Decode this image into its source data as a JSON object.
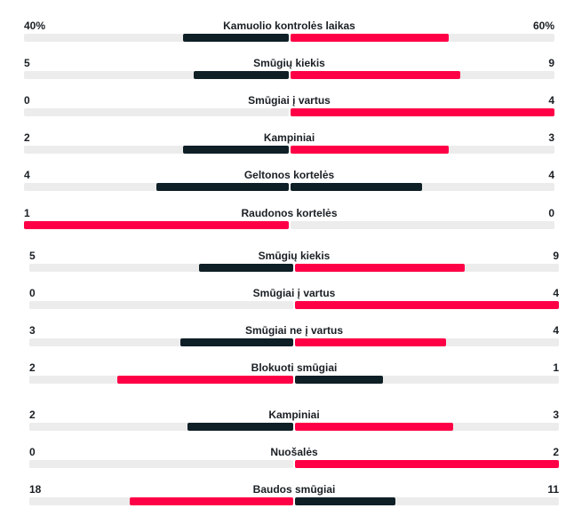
{
  "colors": {
    "leader": "#ff0046",
    "trailer": "#0f1f26",
    "track": "#ececec"
  },
  "panels": [
    {
      "rows": [
        {
          "label": "Kamuolio kontrolės laikas",
          "home": "40%",
          "away": "60%",
          "home_value": 40,
          "away_value": 60
        },
        {
          "label": "Smūgių kiekis",
          "home": "5",
          "away": "9",
          "home_value": 5,
          "away_value": 9
        },
        {
          "label": "Smūgiai į vartus",
          "home": "0",
          "away": "4",
          "home_value": 0,
          "away_value": 4
        },
        {
          "label": "Kampiniai",
          "home": "2",
          "away": "3",
          "home_value": 2,
          "away_value": 3
        },
        {
          "label": "Geltonos kortelės",
          "home": "4",
          "away": "4",
          "home_value": 4,
          "away_value": 4
        },
        {
          "label": "Raudonos kortelės",
          "home": "1",
          "away": "0",
          "home_value": 1,
          "away_value": 0
        }
      ]
    },
    {
      "rows": [
        {
          "label": "Smūgių kiekis",
          "home": "5",
          "away": "9",
          "home_value": 5,
          "away_value": 9
        },
        {
          "label": "Smūgiai į vartus",
          "home": "0",
          "away": "4",
          "home_value": 0,
          "away_value": 4
        },
        {
          "label": "Smūgiai ne į vartus",
          "home": "3",
          "away": "4",
          "home_value": 3,
          "away_value": 4
        },
        {
          "label": "Blokuoti smūgiai",
          "home": "2",
          "away": "1",
          "home_value": 2,
          "away_value": 1
        },
        {
          "label": "Kampiniai",
          "home": "2",
          "away": "3",
          "home_value": 2,
          "away_value": 3
        },
        {
          "label": "Nuošalės",
          "home": "0",
          "away": "2",
          "home_value": 0,
          "away_value": 2
        },
        {
          "label": "Baudos smūgiai",
          "home": "18",
          "away": "11",
          "home_value": 18,
          "away_value": 11
        }
      ]
    }
  ]
}
